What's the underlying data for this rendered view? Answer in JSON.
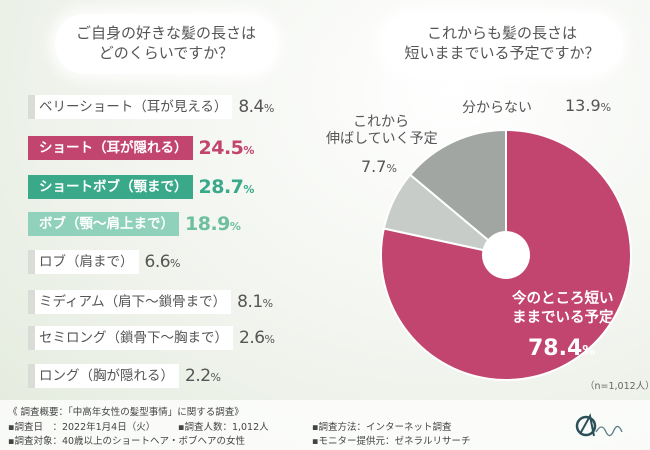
{
  "chart_data": [
    {
      "type": "bar",
      "title": "ご自身の好きな髪の長さは\nどのくらいですか？",
      "title_lines": [
        "ご自身の好きな髪の長さは",
        "どのくらいですか？"
      ],
      "categories": [
        "ベリーショート（耳が見える）",
        "ショート（耳が隠れる）",
        "ショートボブ（顎まで）",
        "ボブ（顎～肩上まで）",
        "ロブ（肩まで）",
        "ミディアム（肩下～鎖骨まで）",
        "セミロング（鎖骨下～胸まで）",
        "ロング（胸が隠れる）"
      ],
      "values": [
        8.4,
        24.5,
        28.7,
        18.9,
        6.6,
        8.1,
        2.6,
        2.2
      ],
      "value_labels": [
        "8.4",
        "24.5",
        "28.7",
        "18.9",
        "6.6",
        "8.1",
        "2.6",
        "2.2"
      ],
      "unit": "%",
      "highlight": [
        "plain",
        "hl-pink",
        "hl-green",
        "hl-lgreen",
        "plain",
        "plain",
        "plain",
        "plain"
      ]
    },
    {
      "type": "pie",
      "title": "これからも髪の長さは\n短いままでいる予定ですか？",
      "title_lines": [
        "これからも髪の長さは",
        "短いままでいる予定ですか？"
      ],
      "slices": [
        {
          "label": "今のところ短いままでいる予定",
          "label_lines": [
            "今のところ短い",
            "ままでいる予定"
          ],
          "value": 78.4,
          "value_label": "78.4",
          "color": "#c2456f"
        },
        {
          "label": "これから伸ばしていく予定",
          "label_lines": [
            "これから",
            "伸ばしていく予定"
          ],
          "value": 7.7,
          "value_label": "7.7",
          "color": "#c8ccc8"
        },
        {
          "label": "分からない",
          "label_lines": [
            "分からない"
          ],
          "value": 13.9,
          "value_label": "13.9",
          "color": "#a2a6a2"
        }
      ],
      "unit": "%",
      "sample_note": "（n=1,012人）"
    }
  ],
  "footer": {
    "overview": "《 調査概要：「中高年女性の髪型事情」に関する調査》",
    "date": "▪調査日　：2022年1月4日（火）",
    "count": "▪調査人数：1,012人",
    "method": "▪調査方法：インターネット調査",
    "target": "▪調査対象：40歳以上のショートヘア・ボブヘアの女性",
    "provider": "▪モニター提供元：ゼネラルリサーチ"
  },
  "colors": {
    "pink": "#c2456f",
    "green": "#3aa98a",
    "light_green": "#8fd1ba",
    "grey_light": "#c8ccc8",
    "grey_dark": "#a2a6a2"
  },
  "logo_icon": "brand-logo-icon"
}
